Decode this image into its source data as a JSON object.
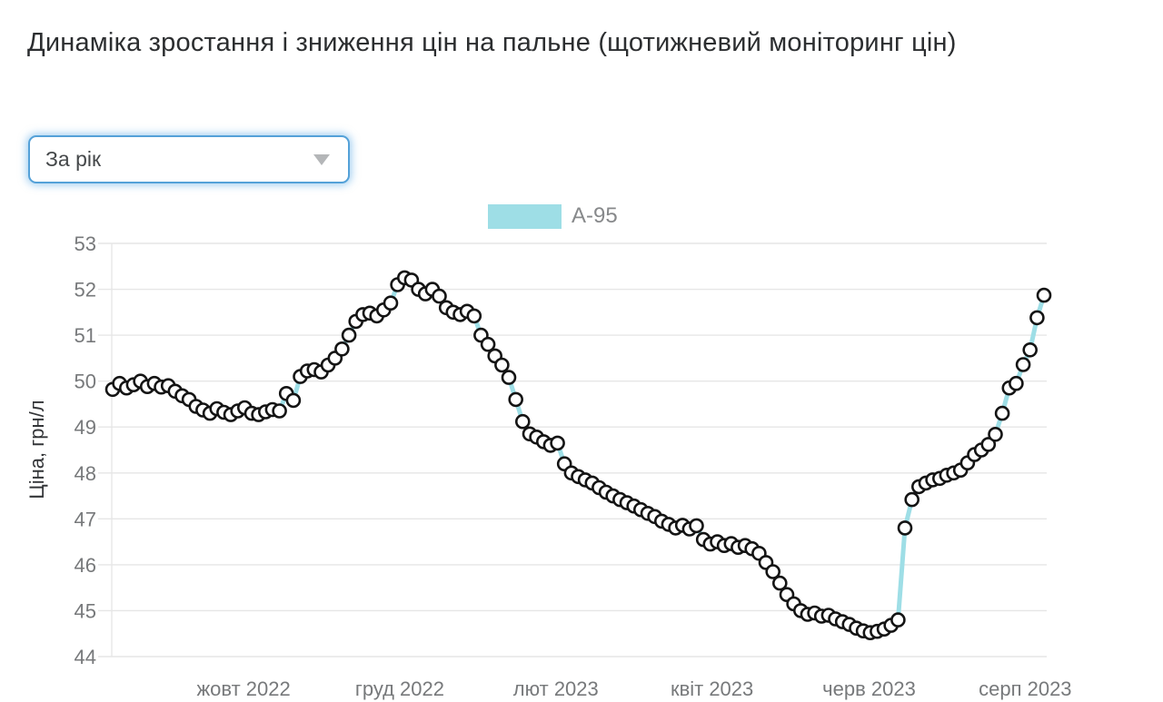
{
  "title": "Динаміка зростання і зниження цін на пальне (щотижневий моніторинг цін)",
  "filter_dropdown": {
    "value": "За рік"
  },
  "legend": {
    "label": "А-95",
    "swatch_color": "#9edee6"
  },
  "chart_data": {
    "type": "line",
    "title": "",
    "ylabel": "Ціна, грн/л",
    "ylim": [
      44,
      53
    ],
    "yticks": [
      53,
      52,
      51,
      50,
      49,
      48,
      47,
      46,
      45,
      44
    ],
    "xticklabels": [
      "жовт 2022",
      "груд 2022",
      "лют 2023",
      "квіт 2023",
      "черв 2023",
      "серп 2023"
    ],
    "xtick_positions": [
      0.141,
      0.308,
      0.475,
      0.642,
      0.81,
      0.977
    ],
    "grid": "horizontal",
    "legend_position": "top-center",
    "series": [
      {
        "name": "А-95",
        "color": "#9edee6",
        "marker_fill": "#ffffff",
        "marker_stroke": "#141414",
        "values": [
          49.82,
          49.95,
          49.85,
          49.92,
          50.0,
          49.88,
          49.95,
          49.87,
          49.9,
          49.78,
          49.68,
          49.6,
          49.45,
          49.37,
          49.3,
          49.4,
          49.32,
          49.27,
          49.35,
          49.42,
          49.3,
          49.27,
          49.33,
          49.38,
          49.35,
          49.73,
          49.58,
          50.1,
          50.22,
          50.25,
          50.2,
          50.35,
          50.5,
          50.7,
          51.0,
          51.3,
          51.45,
          51.48,
          51.42,
          51.55,
          51.7,
          52.1,
          52.25,
          52.2,
          52.0,
          51.9,
          52.0,
          51.85,
          51.6,
          51.5,
          51.45,
          51.52,
          51.42,
          51.0,
          50.8,
          50.55,
          50.35,
          50.08,
          49.6,
          49.12,
          48.85,
          48.78,
          48.68,
          48.6,
          48.65,
          48.2,
          48.0,
          47.92,
          47.85,
          47.78,
          47.68,
          47.58,
          47.5,
          47.42,
          47.35,
          47.28,
          47.2,
          47.12,
          47.05,
          46.95,
          46.88,
          46.8,
          46.86,
          46.78,
          46.85,
          46.55,
          46.45,
          46.5,
          46.42,
          46.46,
          46.38,
          46.42,
          46.35,
          46.25,
          46.05,
          45.85,
          45.6,
          45.35,
          45.15,
          45.0,
          44.92,
          44.95,
          44.88,
          44.9,
          44.82,
          44.76,
          44.7,
          44.62,
          44.56,
          44.52,
          44.55,
          44.6,
          44.68,
          44.8,
          46.8,
          47.42,
          47.7,
          47.78,
          47.85,
          47.88,
          47.95,
          48.0,
          48.06,
          48.22,
          48.4,
          48.5,
          48.62,
          48.84,
          49.3,
          49.85,
          49.95,
          50.36,
          50.68,
          51.38,
          51.87
        ]
      }
    ]
  }
}
